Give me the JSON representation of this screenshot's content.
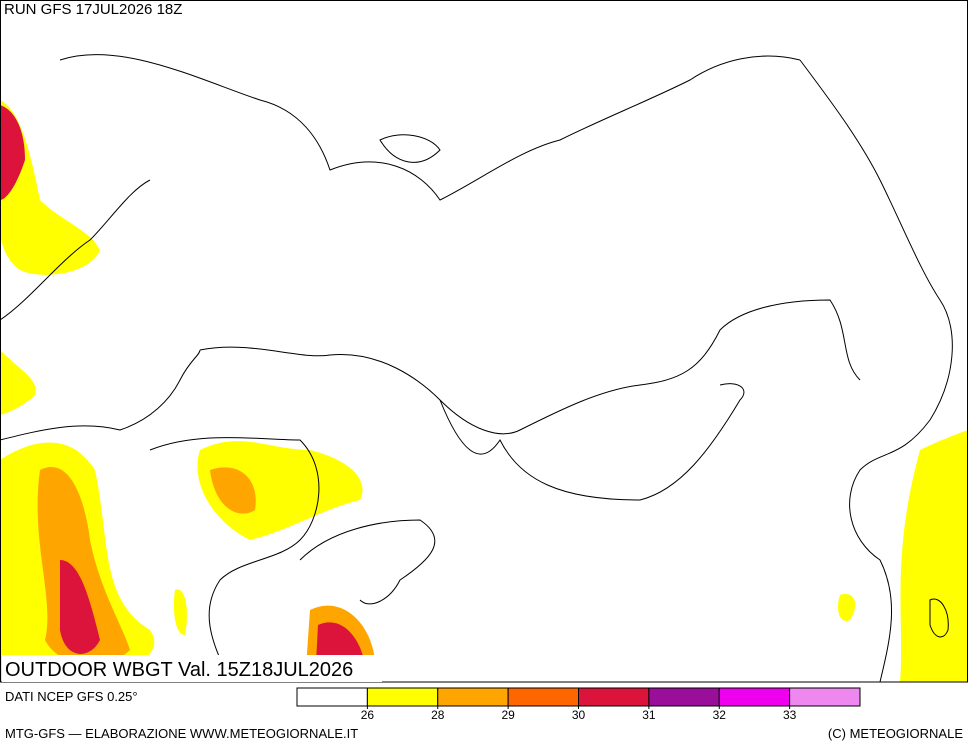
{
  "header": {
    "run": "RUN GFS 17JUL2026 18Z",
    "title": "OUTDOOR WBGT Val. 15Z18JUL2026",
    "source": "DATI NCEP GFS 0.25°"
  },
  "footer": {
    "credit": "MTG-GFS — ELABORAZIONE WWW.METEOGIORNALE.IT",
    "copyright": "(C) METEOGIORNALE"
  },
  "legend": {
    "colors": [
      "#ffffff",
      "#ffff00",
      "#ffa500",
      "#ff6600",
      "#dc143c",
      "#9a0f9a",
      "#ee00ee",
      "#ee88ee"
    ],
    "ticks": [
      26,
      28,
      29,
      30,
      31,
      32,
      33
    ]
  }
}
